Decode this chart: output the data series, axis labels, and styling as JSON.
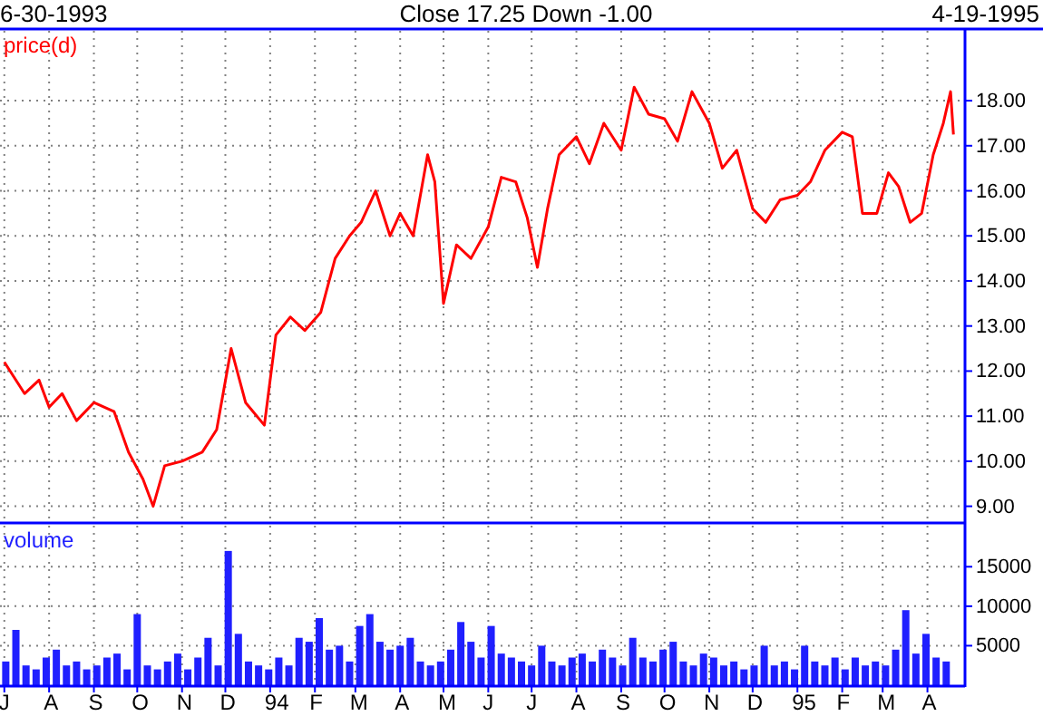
{
  "chart_data": [
    {
      "type": "line",
      "title": "Close 17.25 Down -1.00",
      "annotations": [
        "6-30-1993",
        "4-19-1995"
      ],
      "ylabel": "price(d)",
      "grid": true,
      "tick_labels": "y",
      "xlim": [
        "1993-06-28",
        "1995-04-27"
      ],
      "ylim": [
        8.65,
        19.55
      ],
      "xticks": [
        {
          "value": "1993-07-01",
          "label": null
        },
        {
          "value": "1993-08-01",
          "label": null
        },
        {
          "value": "1993-09-01",
          "label": null
        },
        {
          "value": "1993-10-01",
          "label": null
        },
        {
          "value": "1993-11-01",
          "label": null
        },
        {
          "value": "1993-12-01",
          "label": null
        },
        {
          "value": "1994-01-01",
          "label": null
        },
        {
          "value": "1994-02-01",
          "label": null
        },
        {
          "value": "1994-03-01",
          "label": null
        },
        {
          "value": "1994-04-01",
          "label": null
        },
        {
          "value": "1994-05-01",
          "label": null
        },
        {
          "value": "1994-06-01",
          "label": null
        },
        {
          "value": "1994-07-01",
          "label": null
        },
        {
          "value": "1994-08-01",
          "label": null
        },
        {
          "value": "1994-09-01",
          "label": null
        },
        {
          "value": "1994-10-01",
          "label": null
        },
        {
          "value": "1994-11-01",
          "label": null
        },
        {
          "value": "1994-12-01",
          "label": null
        },
        {
          "value": "1995-01-01",
          "label": null
        },
        {
          "value": "1995-02-01",
          "label": null
        },
        {
          "value": "1995-03-01",
          "label": null
        },
        {
          "value": "1995-04-01",
          "label": null
        }
      ],
      "yticks": [
        {
          "value": 9,
          "label": "9.00"
        },
        {
          "value": 10,
          "label": "10.00"
        },
        {
          "value": 11,
          "label": "11.00"
        },
        {
          "value": 12,
          "label": "12.00"
        },
        {
          "value": 13,
          "label": "13.00"
        },
        {
          "value": 14,
          "label": "14.00"
        },
        {
          "value": 15,
          "label": "15.00"
        },
        {
          "value": 16,
          "label": "16.00"
        },
        {
          "value": 17,
          "label": "17.00"
        },
        {
          "value": 18,
          "label": "18.00"
        }
      ],
      "series": [
        {
          "color": "#ff0000",
          "x": [
            "1993-07-01",
            "1993-07-15",
            "1993-07-25",
            "1993-08-01",
            "1993-08-10",
            "1993-08-20",
            "1993-09-01",
            "1993-09-15",
            "1993-09-25",
            "1993-10-05",
            "1993-10-12",
            "1993-10-20",
            "1993-11-01",
            "1993-11-15",
            "1993-11-25",
            "1993-12-05",
            "1993-12-15",
            "1993-12-28",
            "1994-01-05",
            "1994-01-15",
            "1994-01-25",
            "1994-02-05",
            "1994-02-15",
            "1994-02-25",
            "1994-03-05",
            "1994-03-15",
            "1994-03-25",
            "1994-04-01",
            "1994-04-10",
            "1994-04-20",
            "1994-04-25",
            "1994-05-01",
            "1994-05-10",
            "1994-05-20",
            "1994-06-01",
            "1994-06-10",
            "1994-06-20",
            "1994-06-28",
            "1994-07-05",
            "1994-07-12",
            "1994-07-20",
            "1994-08-01",
            "1994-08-10",
            "1994-08-20",
            "1994-09-01",
            "1994-09-10",
            "1994-09-20",
            "1994-10-01",
            "1994-10-10",
            "1994-10-20",
            "1994-11-01",
            "1994-11-10",
            "1994-11-20",
            "1994-12-01",
            "1994-12-10",
            "1994-12-20",
            "1995-01-01",
            "1995-01-10",
            "1995-01-20",
            "1995-02-01",
            "1995-02-08",
            "1995-02-15",
            "1995-02-25",
            "1995-03-05",
            "1995-03-12",
            "1995-03-20",
            "1995-03-28",
            "1995-04-05",
            "1995-04-12",
            "1995-04-17",
            "1995-04-19"
          ],
          "values": [
            12.2,
            11.5,
            11.8,
            11.2,
            11.5,
            10.9,
            11.3,
            11.1,
            10.2,
            9.6,
            9.0,
            9.9,
            10.0,
            10.2,
            10.7,
            12.5,
            11.3,
            10.8,
            12.8,
            13.2,
            12.9,
            13.3,
            14.5,
            15.0,
            15.3,
            16.0,
            15.0,
            15.5,
            15.0,
            16.8,
            16.2,
            13.5,
            14.8,
            14.5,
            15.2,
            16.3,
            16.2,
            15.4,
            14.3,
            15.6,
            16.8,
            17.2,
            16.6,
            17.5,
            16.9,
            18.3,
            17.7,
            17.6,
            17.1,
            18.2,
            17.5,
            16.5,
            16.9,
            15.6,
            15.3,
            15.8,
            15.9,
            16.2,
            16.9,
            17.3,
            17.2,
            15.5,
            15.5,
            16.4,
            16.1,
            15.3,
            15.5,
            16.8,
            17.5,
            18.2,
            17.25
          ]
        }
      ]
    },
    {
      "type": "bar",
      "ylabel": "volume",
      "grid": true,
      "xlim": [
        "1993-06-28",
        "1995-04-27"
      ],
      "ylim": [
        0,
        20200
      ],
      "xticks": [
        {
          "value": "1993-07-01",
          "label": "J"
        },
        {
          "value": "1993-08-01",
          "label": "A"
        },
        {
          "value": "1993-09-01",
          "label": "S"
        },
        {
          "value": "1993-10-01",
          "label": "O"
        },
        {
          "value": "1993-11-01",
          "label": "N"
        },
        {
          "value": "1993-12-01",
          "label": "D"
        },
        {
          "value": "1994-01-01",
          "label": "94"
        },
        {
          "value": "1994-02-01",
          "label": "F"
        },
        {
          "value": "1994-03-01",
          "label": "M"
        },
        {
          "value": "1994-04-01",
          "label": "A"
        },
        {
          "value": "1994-05-01",
          "label": "M"
        },
        {
          "value": "1994-06-01",
          "label": "J"
        },
        {
          "value": "1994-07-01",
          "label": "J"
        },
        {
          "value": "1994-08-01",
          "label": "A"
        },
        {
          "value": "1994-09-01",
          "label": "S"
        },
        {
          "value": "1994-10-01",
          "label": "O"
        },
        {
          "value": "1994-11-01",
          "label": "N"
        },
        {
          "value": "1994-12-01",
          "label": "D"
        },
        {
          "value": "1995-01-01",
          "label": "95"
        },
        {
          "value": "1995-02-01",
          "label": "F"
        },
        {
          "value": "1995-03-01",
          "label": "M"
        },
        {
          "value": "1995-04-01",
          "label": "A"
        }
      ],
      "yticks": [
        5000,
        10000,
        15000
      ],
      "series": [
        {
          "color": "#1f1fff",
          "x": [
            "1993-07-02",
            "1993-07-09",
            "1993-07-16",
            "1993-07-23",
            "1993-07-30",
            "1993-08-06",
            "1993-08-13",
            "1993-08-20",
            "1993-08-27",
            "1993-09-03",
            "1993-09-10",
            "1993-09-17",
            "1993-09-24",
            "1993-10-01",
            "1993-10-08",
            "1993-10-15",
            "1993-10-22",
            "1993-10-29",
            "1993-11-05",
            "1993-11-12",
            "1993-11-19",
            "1993-11-26",
            "1993-12-03",
            "1993-12-10",
            "1993-12-17",
            "1993-12-24",
            "1993-12-31",
            "1994-01-07",
            "1994-01-14",
            "1994-01-21",
            "1994-01-28",
            "1994-02-04",
            "1994-02-11",
            "1994-02-18",
            "1994-02-25",
            "1994-03-04",
            "1994-03-11",
            "1994-03-18",
            "1994-03-25",
            "1994-04-01",
            "1994-04-08",
            "1994-04-15",
            "1994-04-22",
            "1994-04-29",
            "1994-05-06",
            "1994-05-13",
            "1994-05-20",
            "1994-05-27",
            "1994-06-03",
            "1994-06-10",
            "1994-06-17",
            "1994-06-24",
            "1994-07-01",
            "1994-07-08",
            "1994-07-15",
            "1994-07-22",
            "1994-07-29",
            "1994-08-05",
            "1994-08-12",
            "1994-08-19",
            "1994-08-26",
            "1994-09-02",
            "1994-09-09",
            "1994-09-16",
            "1994-09-23",
            "1994-09-30",
            "1994-10-07",
            "1994-10-14",
            "1994-10-21",
            "1994-10-28",
            "1994-11-04",
            "1994-11-11",
            "1994-11-18",
            "1994-11-25",
            "1994-12-02",
            "1994-12-09",
            "1994-12-16",
            "1994-12-23",
            "1994-12-30",
            "1995-01-06",
            "1995-01-13",
            "1995-01-20",
            "1995-01-27",
            "1995-02-03",
            "1995-02-10",
            "1995-02-17",
            "1995-02-24",
            "1995-03-03",
            "1995-03-10",
            "1995-03-17",
            "1995-03-24",
            "1995-03-31",
            "1995-04-07",
            "1995-04-14"
          ],
          "values": [
            3000,
            7000,
            2500,
            2000,
            3500,
            4500,
            2500,
            3000,
            2000,
            2500,
            3500,
            4000,
            2000,
            9000,
            2500,
            2000,
            3000,
            4000,
            2000,
            3500,
            6000,
            2500,
            17000,
            6500,
            3000,
            2500,
            2000,
            3500,
            2500,
            6000,
            5500,
            8500,
            4500,
            5000,
            3000,
            7500,
            9000,
            5500,
            4500,
            5000,
            6000,
            3000,
            2500,
            3000,
            4500,
            8000,
            5500,
            3500,
            7500,
            4000,
            3500,
            3000,
            2500,
            5000,
            3000,
            2500,
            3500,
            4000,
            3000,
            4500,
            3500,
            2500,
            6000,
            3500,
            3000,
            4500,
            5500,
            3000,
            2500,
            4000,
            3500,
            2500,
            3000,
            2000,
            2500,
            5000,
            2500,
            3000,
            2000,
            5000,
            3000,
            2500,
            3500,
            2000,
            3500,
            2500,
            3000,
            2500,
            4500,
            9500,
            4000,
            6500,
            3500,
            3000
          ]
        }
      ]
    }
  ]
}
